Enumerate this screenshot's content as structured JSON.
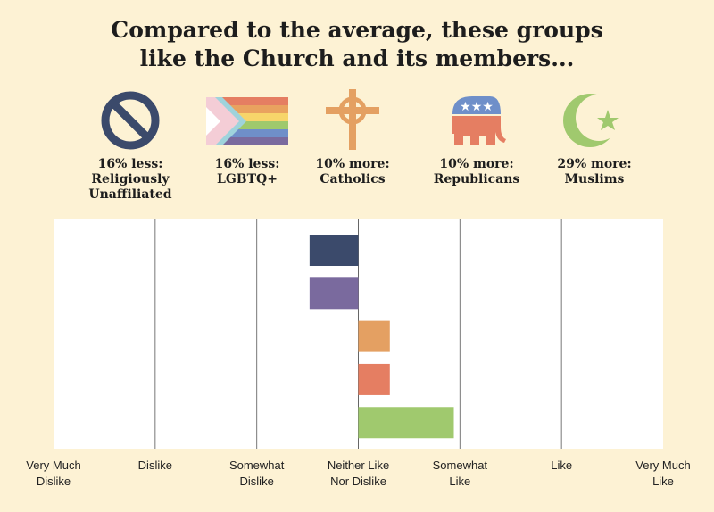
{
  "title_lines": [
    "Compared to the average, these groups",
    "like the Church and its members..."
  ],
  "groups": [
    {
      "icon": "no-symbol-icon",
      "line1": "16% less:",
      "line2": "Religiously Unaffiliated",
      "color": "#3b4a6b"
    },
    {
      "icon": "progress-pride-flag-icon",
      "line1": "16% less:",
      "line2": "LGBTQ+",
      "color": "#7a6a9e"
    },
    {
      "icon": "celtic-cross-icon",
      "line1": "10% more:",
      "line2": "Catholics",
      "color": "#e4a062"
    },
    {
      "icon": "republican-elephant-icon",
      "line1": "10% more:",
      "line2": "Republicans",
      "color": "#e57e62"
    },
    {
      "icon": "crescent-star-icon",
      "line1": "29% more:",
      "line2": "Muslims",
      "color": "#a0c96e"
    }
  ],
  "chart_data": {
    "type": "bar",
    "orientation": "horizontal",
    "categories": [
      "Religiously Unaffiliated",
      "LGBTQ+",
      "Catholics",
      "Republicans",
      "Muslims"
    ],
    "values": [
      3.52,
      3.52,
      4.31,
      4.31,
      4.94
    ],
    "baseline": 4,
    "xlim": [
      1,
      7
    ],
    "x_tick_labels": [
      [
        "Very Much",
        "Dislike"
      ],
      [
        "Dislike"
      ],
      [
        "Somewhat",
        "Dislike"
      ],
      [
        "Neither Like",
        "Nor Dislike"
      ],
      [
        "Somewhat",
        "Like"
      ],
      [
        "Like"
      ],
      [
        "Very Much",
        "Like"
      ]
    ],
    "colors": [
      "#3b4a6b",
      "#7a6a9e",
      "#e4a062",
      "#e57e62",
      "#a0c96e"
    ],
    "grid": true
  }
}
